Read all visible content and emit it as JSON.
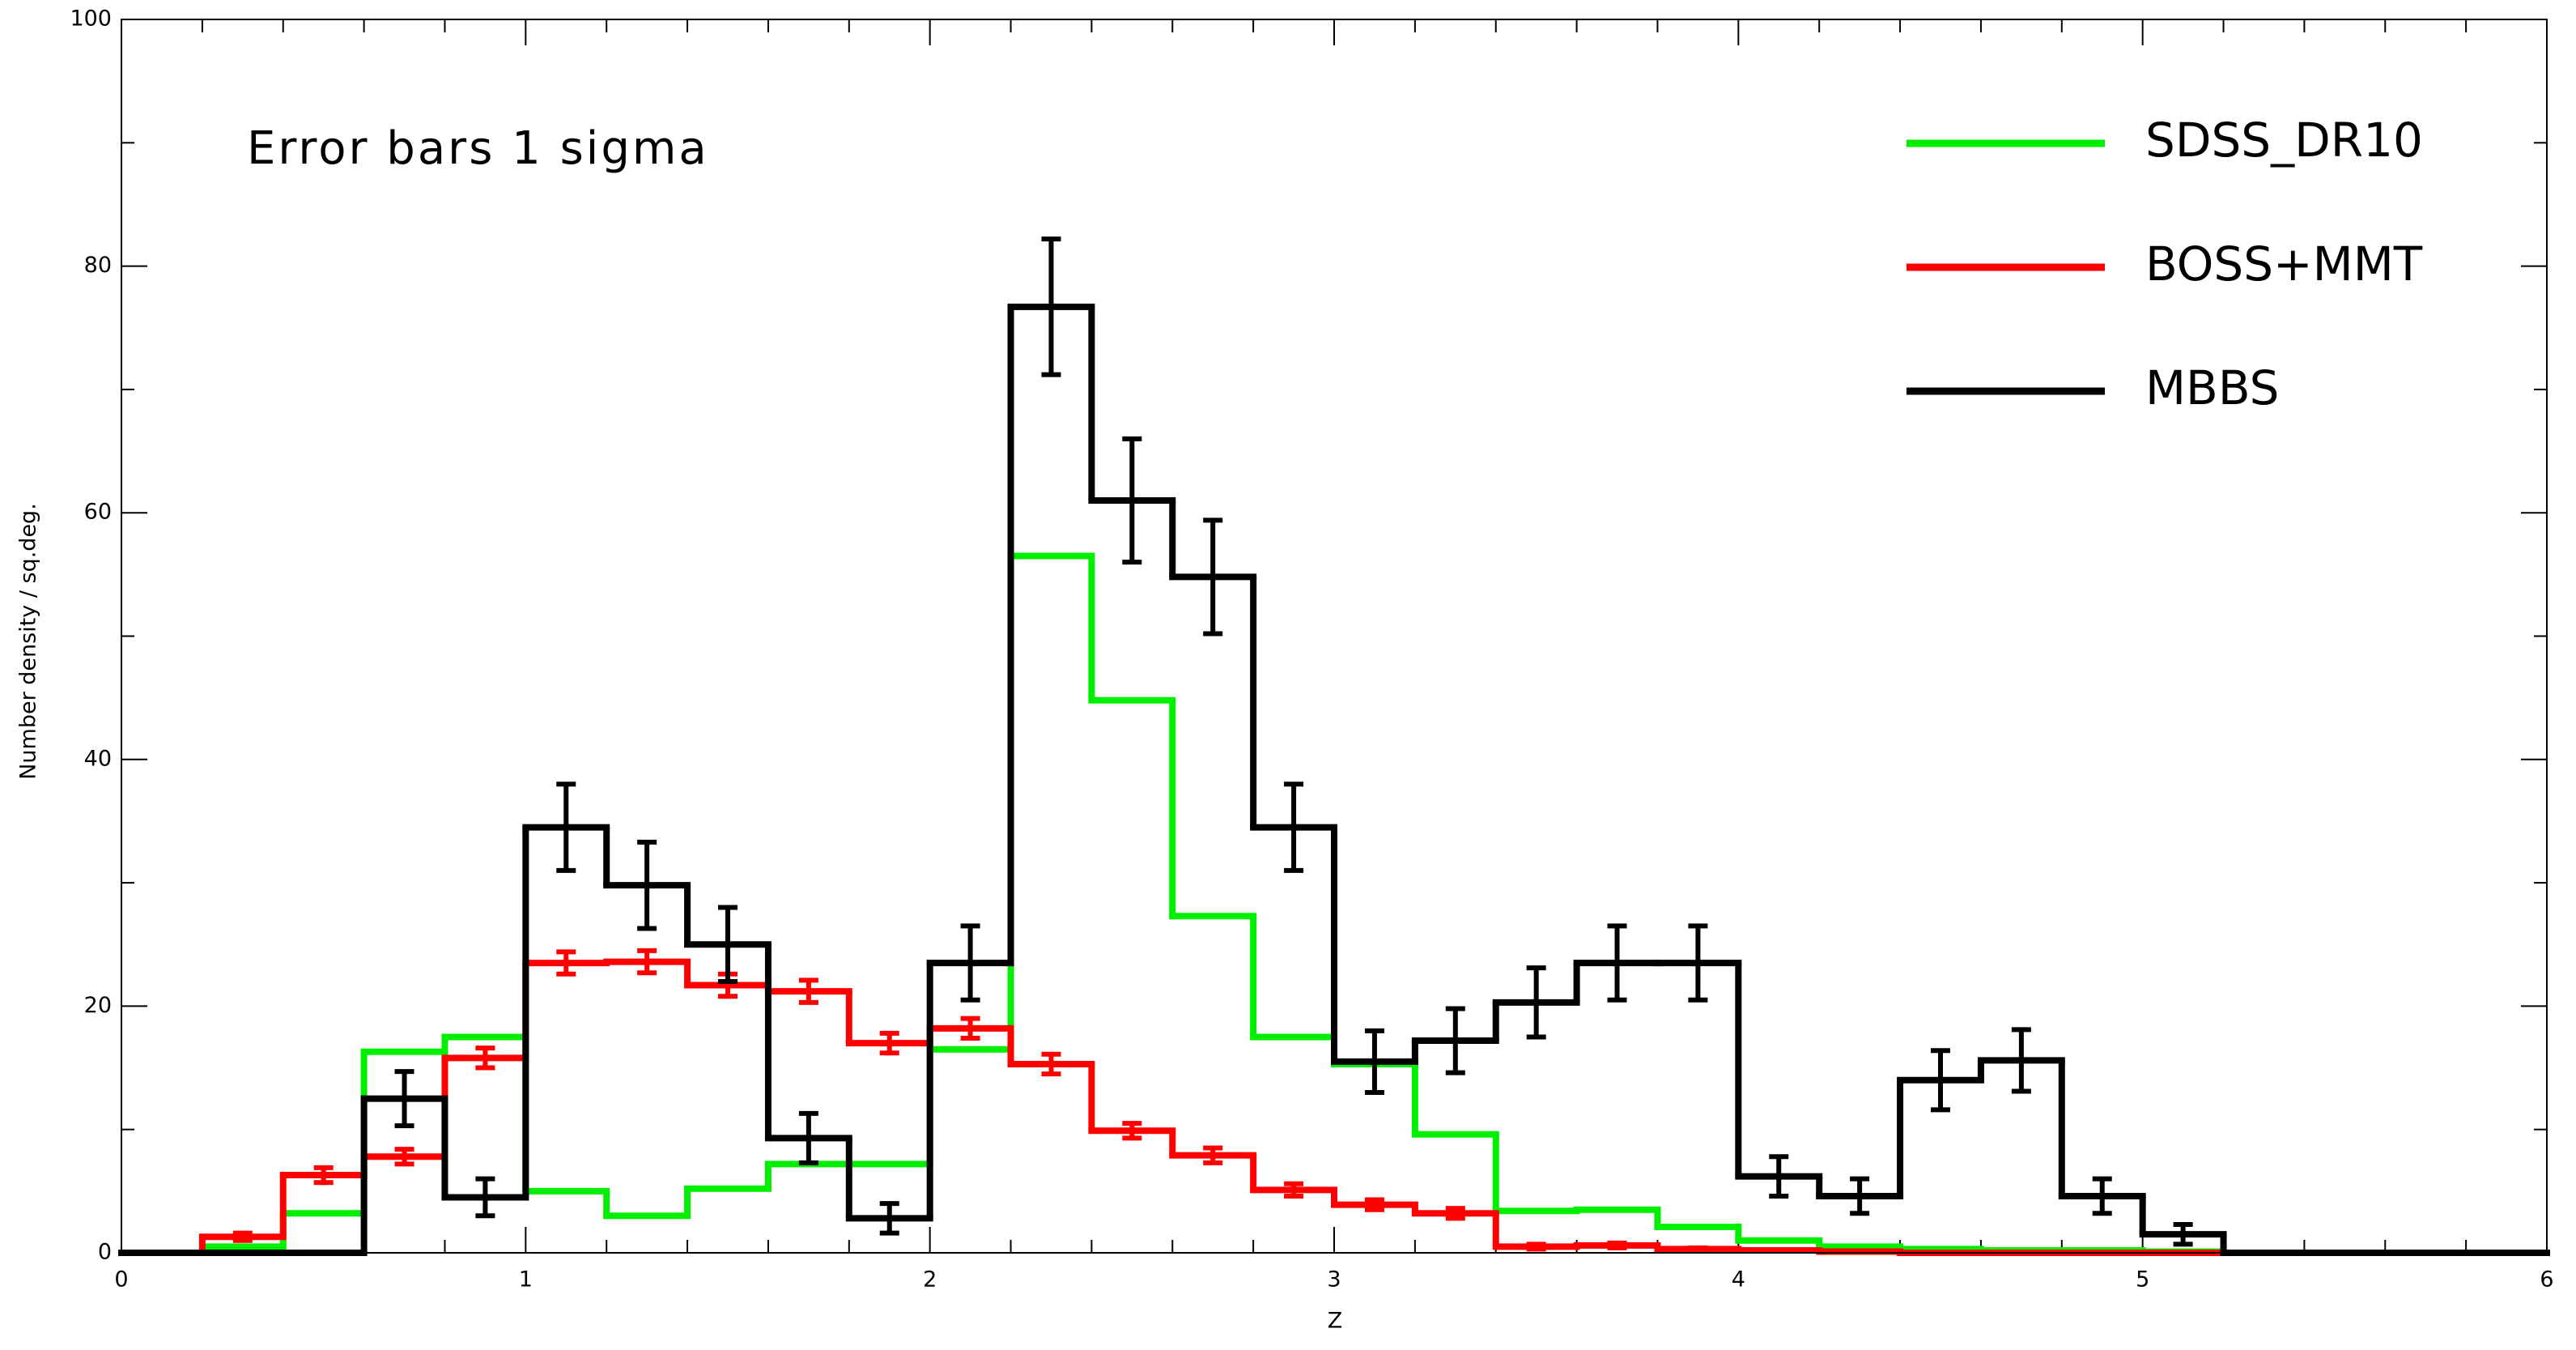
{
  "chart_data": {
    "type": "histogram",
    "annotation": "Error bars 1 sigma",
    "x_label": "Z",
    "y_label": "Number density / sq.deg.",
    "bins": [
      0,
      0.2,
      0.4,
      0.6,
      0.8,
      1.0,
      1.2,
      1.4,
      1.6,
      1.8,
      2.0,
      2.2,
      2.4,
      2.6,
      2.8,
      3.0,
      3.2,
      3.4,
      3.6,
      3.8,
      4.0,
      4.2,
      4.4,
      4.6,
      4.8,
      5.0,
      5.2,
      5.4,
      5.6,
      5.8,
      6.0
    ],
    "series": [
      {
        "name": "SDSS_DR10",
        "color": "#00ee00",
        "values": [
          0,
          0.5,
          3.2,
          16.3,
          17.5,
          5,
          3,
          5.2,
          7.2,
          7.2,
          16.5,
          56.5,
          44.8,
          27.3,
          17.5,
          15.3,
          9.6,
          3.4,
          3.5,
          2.1,
          1,
          0.5,
          0.3,
          0.2,
          0.2,
          0.1,
          0,
          0,
          0,
          0
        ]
      },
      {
        "name": "BOSS+MMT",
        "color": "#ff0000",
        "values": [
          0,
          1.3,
          6.3,
          7.8,
          15.8,
          23.5,
          23.6,
          21.7,
          21.2,
          17,
          18.2,
          15.3,
          9.9,
          7.9,
          5.1,
          3.9,
          3.2,
          0.5,
          0.6,
          0.3,
          0.2,
          0.1,
          0,
          0,
          0,
          0,
          0,
          0,
          0,
          0
        ],
        "errors": [
          null,
          0.3,
          0.6,
          0.6,
          0.8,
          0.9,
          0.9,
          0.9,
          0.9,
          0.8,
          0.8,
          0.8,
          0.6,
          0.6,
          0.5,
          0.4,
          0.4,
          0.2,
          0.2,
          0.1,
          null,
          null,
          null,
          null,
          null,
          null,
          null,
          null,
          null,
          null
        ]
      },
      {
        "name": "MBBS",
        "color": "#000000",
        "values": [
          0,
          0,
          0,
          12.5,
          4.5,
          34.5,
          29.8,
          25,
          9.3,
          2.8,
          23.5,
          76.7,
          61,
          54.8,
          34.5,
          15.5,
          17.2,
          20.3,
          23.5,
          23.5,
          6.2,
          4.6,
          14,
          15.6,
          4.6,
          1.5,
          0,
          0,
          0,
          0
        ],
        "errors": [
          null,
          null,
          null,
          2.2,
          1.5,
          3.5,
          3.5,
          3,
          2,
          1.2,
          3,
          5.5,
          5,
          4.6,
          3.5,
          2.5,
          2.6,
          2.8,
          3,
          3,
          1.6,
          1.4,
          2.4,
          2.5,
          1.4,
          0.8,
          null,
          null,
          null,
          null
        ]
      }
    ],
    "xlim": [
      0,
      6
    ],
    "ylim": [
      0,
      100
    ],
    "xticks": [
      0,
      1,
      2,
      3,
      4,
      5,
      6
    ],
    "yticks": [
      0,
      20,
      40,
      60,
      80,
      100
    ],
    "xminorticks": [
      0.2,
      0.4,
      0.6,
      0.8,
      1.2,
      1.4,
      1.6,
      1.8,
      2.2,
      2.4,
      2.6,
      2.8,
      3.2,
      3.4,
      3.6,
      3.8,
      4.2,
      4.4,
      4.6,
      4.8,
      5.2,
      5.4,
      5.6,
      5.8
    ],
    "yminorticks": [
      10,
      30,
      50,
      70,
      90
    ],
    "legend": "upper right"
  }
}
